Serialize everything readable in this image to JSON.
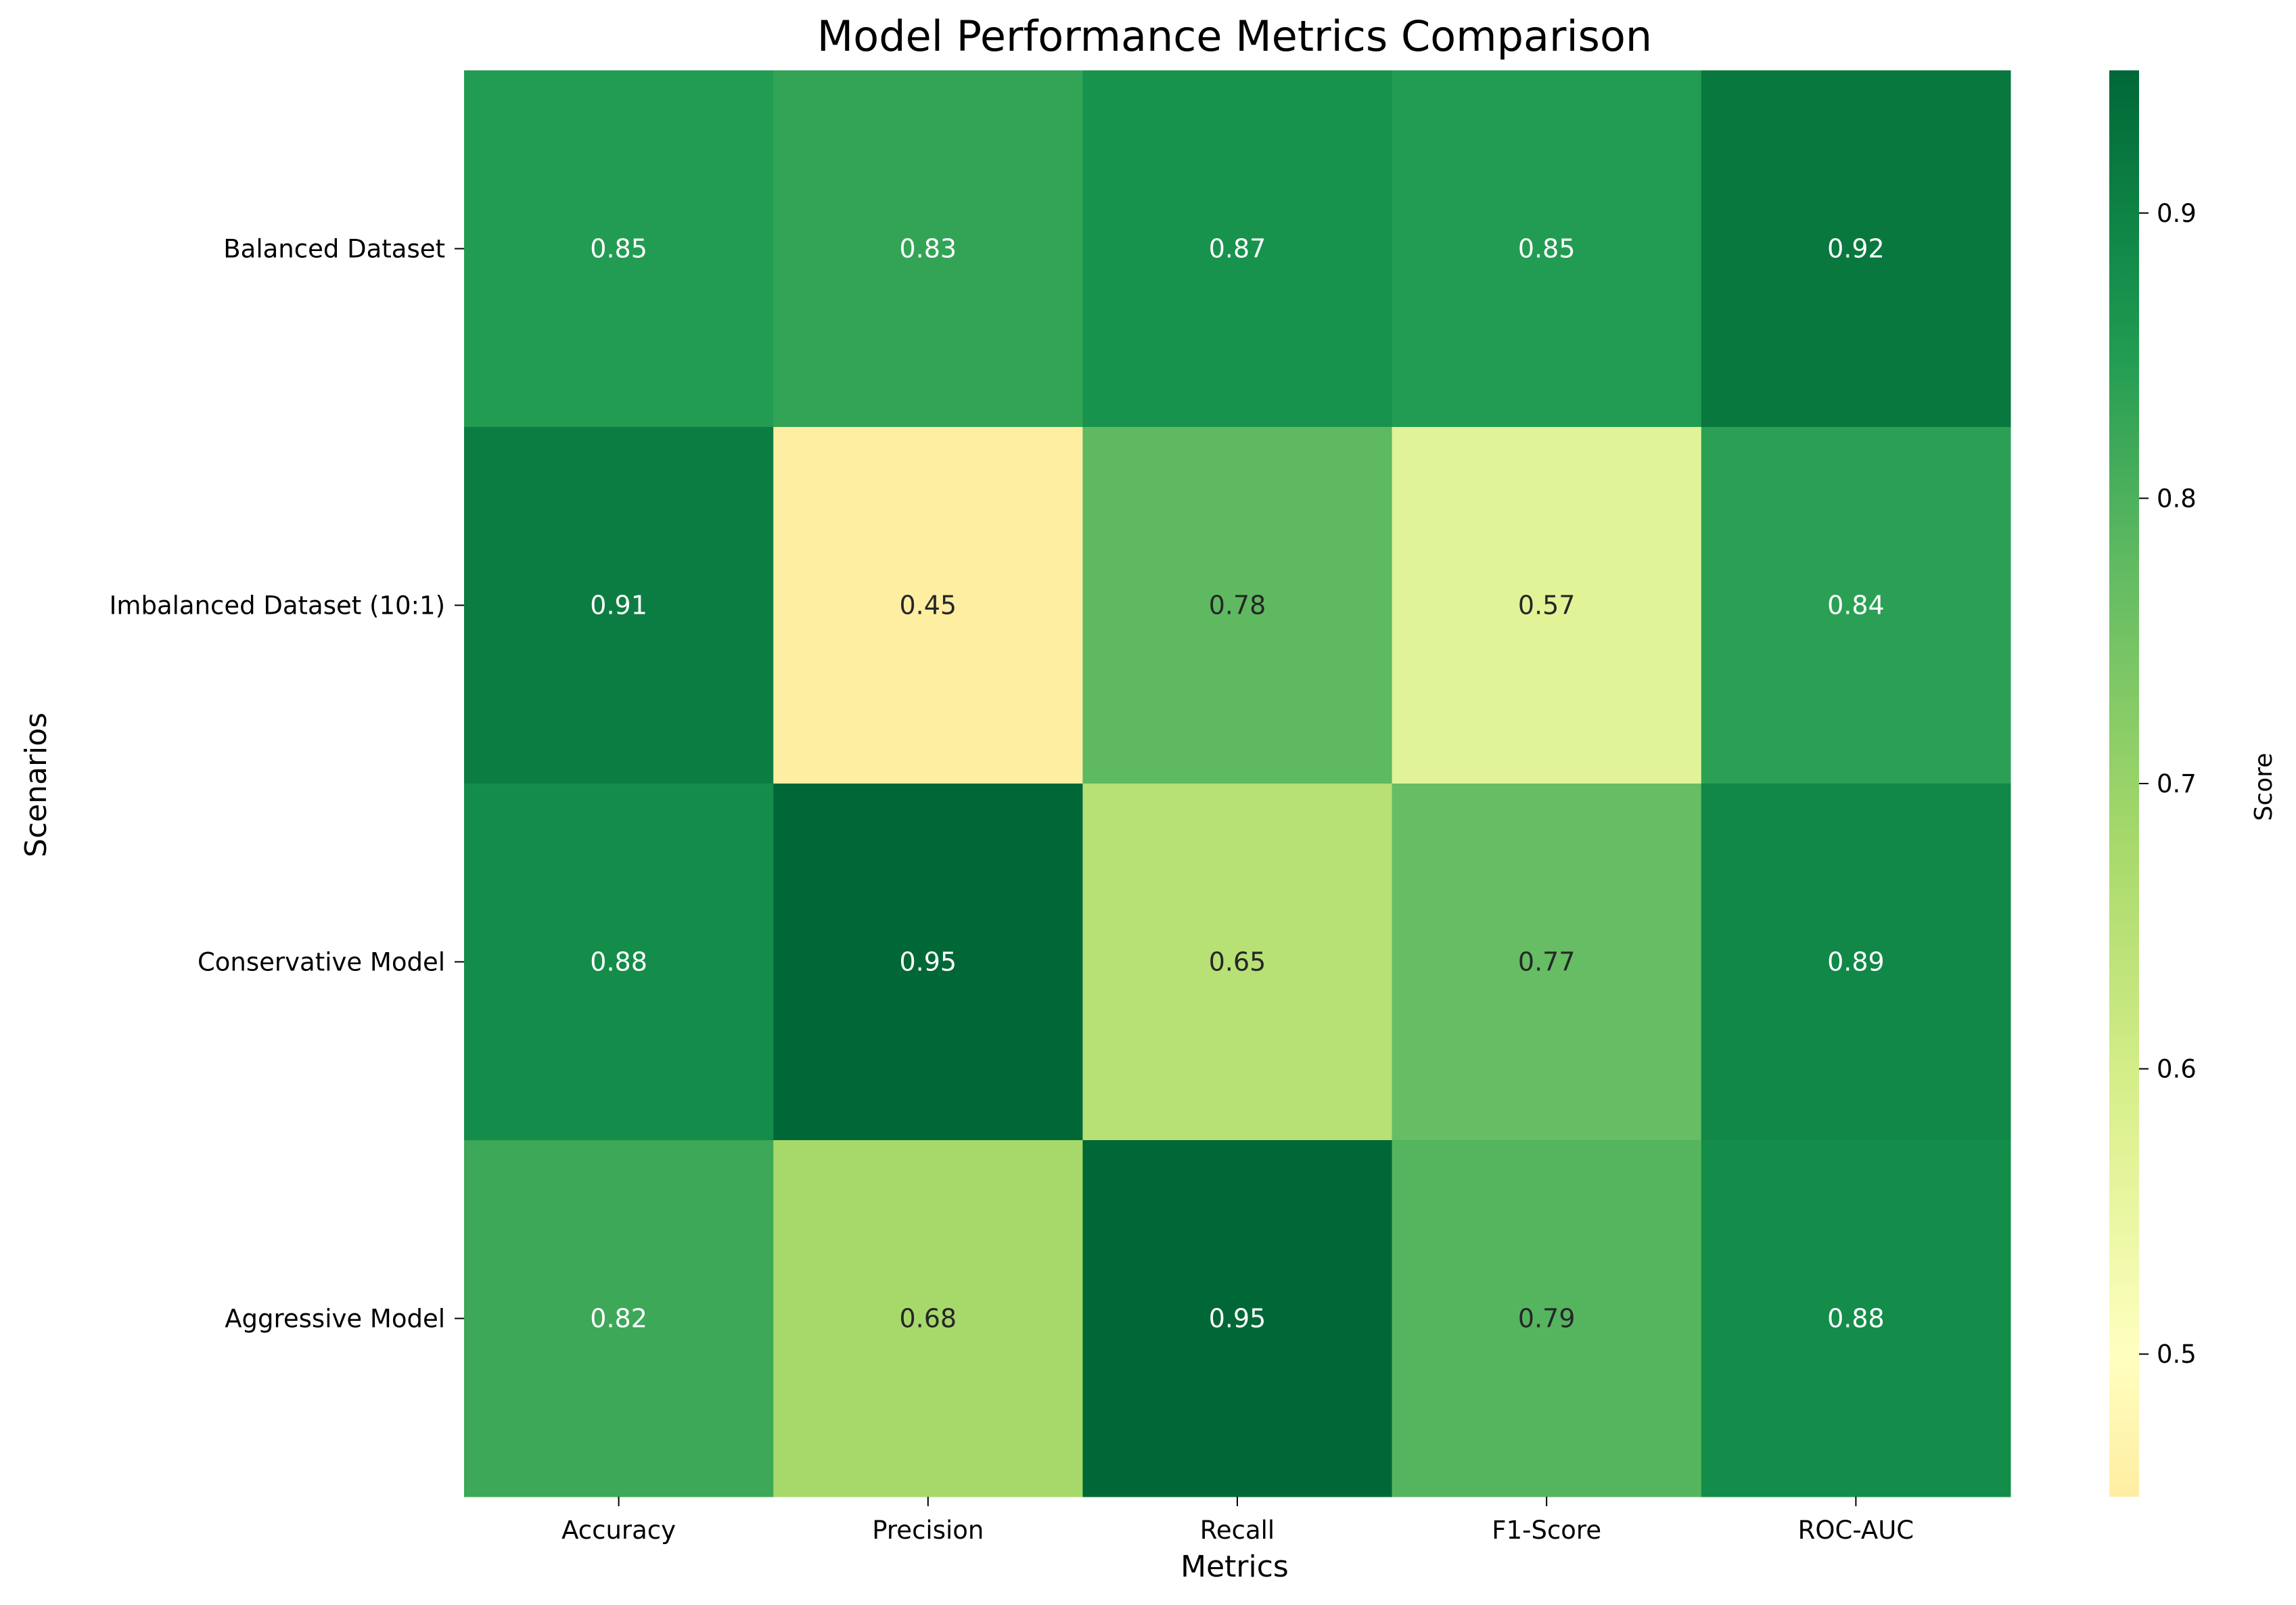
{
  "chart_data": {
    "type": "heatmap",
    "title": "Model Performance Metrics Comparison",
    "xlabel": "Metrics",
    "ylabel": "Scenarios",
    "x_categories": [
      "Accuracy",
      "Precision",
      "Recall",
      "F1-Score",
      "ROC-AUC"
    ],
    "y_categories": [
      "Balanced Dataset",
      "Imbalanced Dataset (10:1)",
      "Conservative Model",
      "Aggressive Model"
    ],
    "values": [
      [
        0.85,
        0.83,
        0.87,
        0.85,
        0.92
      ],
      [
        0.91,
        0.45,
        0.78,
        0.57,
        0.84
      ],
      [
        0.88,
        0.95,
        0.65,
        0.77,
        0.89
      ],
      [
        0.82,
        0.68,
        0.95,
        0.79,
        0.88
      ]
    ],
    "value_format": "0.00",
    "colormap": "RdYlGn",
    "vmin": 0.45,
    "vmax": 0.95,
    "colorbar": {
      "label": "Score",
      "ticks": [
        "0.5",
        "0.6",
        "0.7",
        "0.8",
        "0.9"
      ],
      "range": [
        0.45,
        0.95
      ]
    },
    "grid": false,
    "legend": "colorbar-right"
  }
}
